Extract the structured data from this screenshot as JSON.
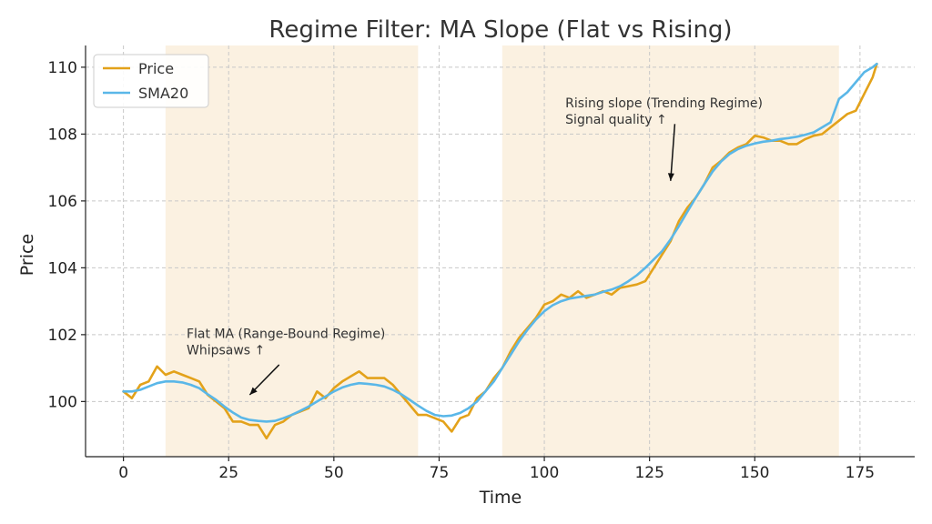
{
  "chart_data": {
    "type": "line",
    "title": "Regime Filter: MA Slope (Flat vs Rising)",
    "xlabel": "Time",
    "ylabel": "Price",
    "xlim": [
      -9,
      188
    ],
    "ylim": [
      98.35,
      110.65
    ],
    "xticks": [
      0,
      25,
      50,
      75,
      100,
      125,
      150,
      175
    ],
    "yticks": [
      100,
      102,
      104,
      106,
      108,
      110
    ],
    "grid": true,
    "legend_position": "upper-left",
    "shaded_regions": [
      {
        "x0": 10,
        "x1": 70,
        "color": "#fbf1e1"
      },
      {
        "x0": 90,
        "x1": 170,
        "color": "#fbf1e1"
      }
    ],
    "series": [
      {
        "name": "Price",
        "color": "#e3a21a",
        "x": [
          0,
          2,
          4,
          6,
          8,
          10,
          12,
          14,
          16,
          18,
          20,
          22,
          24,
          26,
          28,
          30,
          32,
          34,
          36,
          38,
          40,
          42,
          44,
          46,
          48,
          50,
          52,
          54,
          56,
          58,
          60,
          62,
          64,
          66,
          68,
          70,
          72,
          74,
          76,
          78,
          80,
          82,
          84,
          86,
          88,
          90,
          92,
          94,
          96,
          98,
          100,
          102,
          104,
          106,
          108,
          110,
          112,
          114,
          116,
          118,
          120,
          122,
          124,
          126,
          128,
          130,
          132,
          134,
          136,
          138,
          140,
          142,
          144,
          146,
          148,
          150,
          152,
          154,
          156,
          158,
          160,
          162,
          164,
          166,
          168,
          170,
          172,
          174,
          176,
          178,
          179
        ],
        "values": [
          100.3,
          100.1,
          100.5,
          100.6,
          101.05,
          100.8,
          100.9,
          100.8,
          100.7,
          100.6,
          100.2,
          100.0,
          99.8,
          99.4,
          99.4,
          99.3,
          99.3,
          98.9,
          99.3,
          99.4,
          99.6,
          99.7,
          99.8,
          100.3,
          100.1,
          100.4,
          100.6,
          100.75,
          100.9,
          100.7,
          100.7,
          100.7,
          100.5,
          100.2,
          99.9,
          99.6,
          99.6,
          99.5,
          99.4,
          99.1,
          99.5,
          99.6,
          100.1,
          100.3,
          100.7,
          101.0,
          101.5,
          101.9,
          102.2,
          102.5,
          102.9,
          103.0,
          103.2,
          103.1,
          103.3,
          103.1,
          103.2,
          103.3,
          103.2,
          103.4,
          103.45,
          103.5,
          103.6,
          104.0,
          104.4,
          104.8,
          105.4,
          105.8,
          106.1,
          106.5,
          107.0,
          107.2,
          107.45,
          107.6,
          107.7,
          107.95,
          107.9,
          107.8,
          107.8,
          107.7,
          107.7,
          107.85,
          107.95,
          108.0,
          108.2,
          108.4,
          108.6,
          108.7,
          109.2,
          109.7,
          110.1
        ]
      },
      {
        "name": "SMA20",
        "color": "#5ab7e8",
        "x": [
          0,
          2,
          4,
          6,
          8,
          10,
          12,
          14,
          16,
          18,
          20,
          22,
          24,
          26,
          28,
          30,
          32,
          34,
          36,
          38,
          40,
          42,
          44,
          46,
          48,
          50,
          52,
          54,
          56,
          58,
          60,
          62,
          64,
          66,
          68,
          70,
          72,
          74,
          76,
          78,
          80,
          82,
          84,
          86,
          88,
          90,
          92,
          94,
          96,
          98,
          100,
          102,
          104,
          106,
          108,
          110,
          112,
          114,
          116,
          118,
          120,
          122,
          124,
          126,
          128,
          130,
          132,
          134,
          136,
          138,
          140,
          142,
          144,
          146,
          148,
          150,
          152,
          154,
          156,
          158,
          160,
          162,
          164,
          166,
          168,
          170,
          172,
          174,
          176,
          178,
          179
        ],
        "values": [
          100.3,
          100.3,
          100.35,
          100.45,
          100.55,
          100.6,
          100.6,
          100.57,
          100.5,
          100.4,
          100.22,
          100.05,
          99.85,
          99.67,
          99.52,
          99.45,
          99.42,
          99.4,
          99.42,
          99.5,
          99.6,
          99.72,
          99.85,
          100.0,
          100.15,
          100.3,
          100.42,
          100.5,
          100.55,
          100.53,
          100.5,
          100.45,
          100.35,
          100.22,
          100.05,
          99.88,
          99.72,
          99.6,
          99.56,
          99.58,
          99.66,
          99.8,
          100.0,
          100.3,
          100.6,
          101.0,
          101.4,
          101.8,
          102.15,
          102.45,
          102.7,
          102.88,
          103.0,
          103.08,
          103.12,
          103.16,
          103.2,
          103.28,
          103.35,
          103.45,
          103.6,
          103.78,
          104.0,
          104.25,
          104.5,
          104.85,
          105.25,
          105.68,
          106.1,
          106.5,
          106.88,
          107.18,
          107.4,
          107.55,
          107.65,
          107.72,
          107.77,
          107.8,
          107.85,
          107.88,
          107.92,
          107.98,
          108.05,
          108.2,
          108.35,
          109.05,
          109.25,
          109.55,
          109.85,
          110.0,
          110.1
        ]
      }
    ],
    "annotations": [
      {
        "lines": [
          "Flat MA (Range-Bound Regime)",
          "Whipsaws ↑"
        ],
        "text_x": 15,
        "text_y": 101.9,
        "arrow_from": [
          37,
          101.1
        ],
        "arrow_to": [
          30,
          100.2
        ]
      },
      {
        "lines": [
          "Rising slope (Trending Regime)",
          "Signal quality ↑"
        ],
        "text_x": 105,
        "text_y": 108.8,
        "arrow_from": [
          131,
          108.3
        ],
        "arrow_to": [
          130,
          106.6
        ]
      }
    ]
  }
}
